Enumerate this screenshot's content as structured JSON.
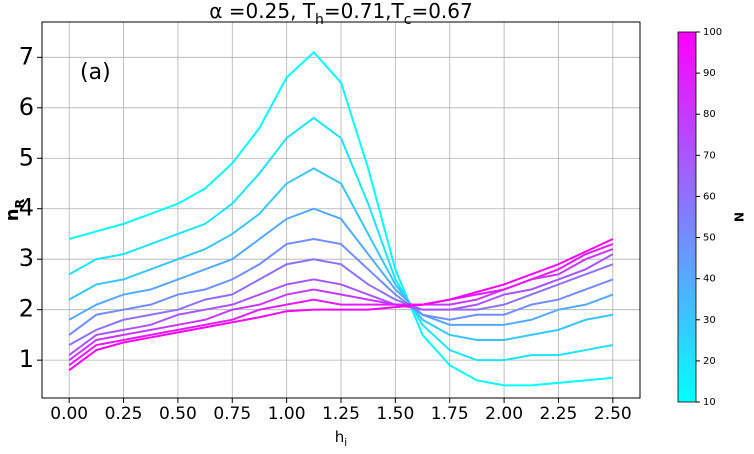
{
  "chart_data": {
    "type": "line",
    "title": [
      "α =0.25, T",
      "h",
      "=0.71,T",
      "c",
      "=0.67"
    ],
    "ylabel": [
      "n",
      "R"
    ],
    "xlabel": [
      "h",
      "i"
    ],
    "annotation": "(a)",
    "grid": true,
    "xlim": [
      -0.125,
      2.625
    ],
    "ylim": [
      0.25,
      7.7
    ],
    "xticks": [
      {
        "value": 0,
        "label": "0.00"
      },
      {
        "value": 0.25,
        "label": "0.25"
      },
      {
        "value": 0.5,
        "label": "0.50"
      },
      {
        "value": 0.75,
        "label": "0.75"
      },
      {
        "value": 1,
        "label": "1.00"
      },
      {
        "value": 1.25,
        "label": "1.25"
      },
      {
        "value": 1.5,
        "label": "1.50"
      },
      {
        "value": 1.75,
        "label": "1.75"
      },
      {
        "value": 2,
        "label": "2.00"
      },
      {
        "value": 2.25,
        "label": "2.25"
      },
      {
        "value": 2.5,
        "label": "2.50"
      }
    ],
    "yticks": [
      1,
      2,
      3,
      4,
      5,
      6,
      7
    ],
    "x": [
      0,
      0.125,
      0.25,
      0.375,
      0.5,
      0.625,
      0.75,
      0.875,
      1,
      1.125,
      1.25,
      1.375,
      1.5,
      1.625,
      1.75,
      1.875,
      2,
      2.125,
      2.25,
      2.375,
      2.5
    ],
    "series": [
      {
        "color": "#00ffff",
        "values": [
          3.4,
          3.55,
          3.7,
          3.9,
          4.1,
          4.4,
          4.9,
          5.6,
          6.6,
          7.1,
          6.5,
          4.8,
          2.8,
          1.5,
          0.9,
          0.6,
          0.5,
          0.5,
          0.55,
          0.6,
          0.65
        ]
      },
      {
        "color": "#1ce3ff",
        "values": [
          2.7,
          3.0,
          3.1,
          3.3,
          3.5,
          3.7,
          4.1,
          4.7,
          5.4,
          5.8,
          5.4,
          4.1,
          2.6,
          1.7,
          1.2,
          1.0,
          1.0,
          1.1,
          1.1,
          1.2,
          1.3
        ]
      },
      {
        "color": "#38c6ff",
        "values": [
          2.2,
          2.5,
          2.6,
          2.8,
          3.0,
          3.2,
          3.5,
          3.9,
          4.5,
          4.8,
          4.5,
          3.5,
          2.5,
          1.8,
          1.5,
          1.4,
          1.4,
          1.5,
          1.6,
          1.8,
          1.9
        ]
      },
      {
        "color": "#55aaff",
        "values": [
          1.8,
          2.1,
          2.3,
          2.4,
          2.6,
          2.8,
          3.0,
          3.4,
          3.8,
          4.0,
          3.8,
          3.1,
          2.4,
          1.9,
          1.7,
          1.7,
          1.7,
          1.8,
          2.0,
          2.1,
          2.3
        ]
      },
      {
        "color": "#718eff",
        "values": [
          1.5,
          1.9,
          2.0,
          2.1,
          2.3,
          2.4,
          2.6,
          2.9,
          3.3,
          3.4,
          3.3,
          2.8,
          2.3,
          1.9,
          1.8,
          1.9,
          1.9,
          2.1,
          2.2,
          2.4,
          2.6
        ]
      },
      {
        "color": "#8e71ff",
        "values": [
          1.3,
          1.6,
          1.8,
          1.9,
          2.0,
          2.2,
          2.3,
          2.6,
          2.9,
          3.0,
          2.9,
          2.5,
          2.2,
          2.0,
          2.0,
          2.0,
          2.1,
          2.3,
          2.5,
          2.7,
          2.9
        ]
      },
      {
        "color": "#aa55ff",
        "values": [
          1.1,
          1.5,
          1.6,
          1.7,
          1.9,
          2.0,
          2.1,
          2.3,
          2.5,
          2.6,
          2.5,
          2.3,
          2.1,
          2.0,
          2.0,
          2.1,
          2.3,
          2.4,
          2.6,
          2.8,
          3.1
        ]
      },
      {
        "color": "#c638ff",
        "values": [
          1.0,
          1.4,
          1.5,
          1.6,
          1.7,
          1.8,
          2.0,
          2.1,
          2.3,
          2.4,
          2.3,
          2.2,
          2.1,
          2.1,
          2.1,
          2.2,
          2.4,
          2.6,
          2.7,
          3.0,
          3.2
        ]
      },
      {
        "color": "#e31cff",
        "values": [
          0.9,
          1.3,
          1.4,
          1.5,
          1.6,
          1.7,
          1.8,
          2.0,
          2.1,
          2.2,
          2.1,
          2.1,
          2.1,
          2.1,
          2.2,
          2.3,
          2.4,
          2.6,
          2.8,
          3.1,
          3.3
        ]
      },
      {
        "color": "#ff00ff",
        "values": [
          0.8,
          1.2,
          1.35,
          1.45,
          1.55,
          1.65,
          1.75,
          1.85,
          1.97,
          2.0,
          2.0,
          2.0,
          2.05,
          2.1,
          2.2,
          2.35,
          2.5,
          2.7,
          2.9,
          3.15,
          3.4
        ]
      }
    ],
    "colorbar": {
      "label": "N",
      "lim": [
        10,
        100
      ],
      "ticks": [
        10,
        20,
        30,
        40,
        50,
        60,
        70,
        80,
        90,
        100
      ],
      "colors": [
        "#00ffff",
        "#ff00ff"
      ]
    }
  }
}
